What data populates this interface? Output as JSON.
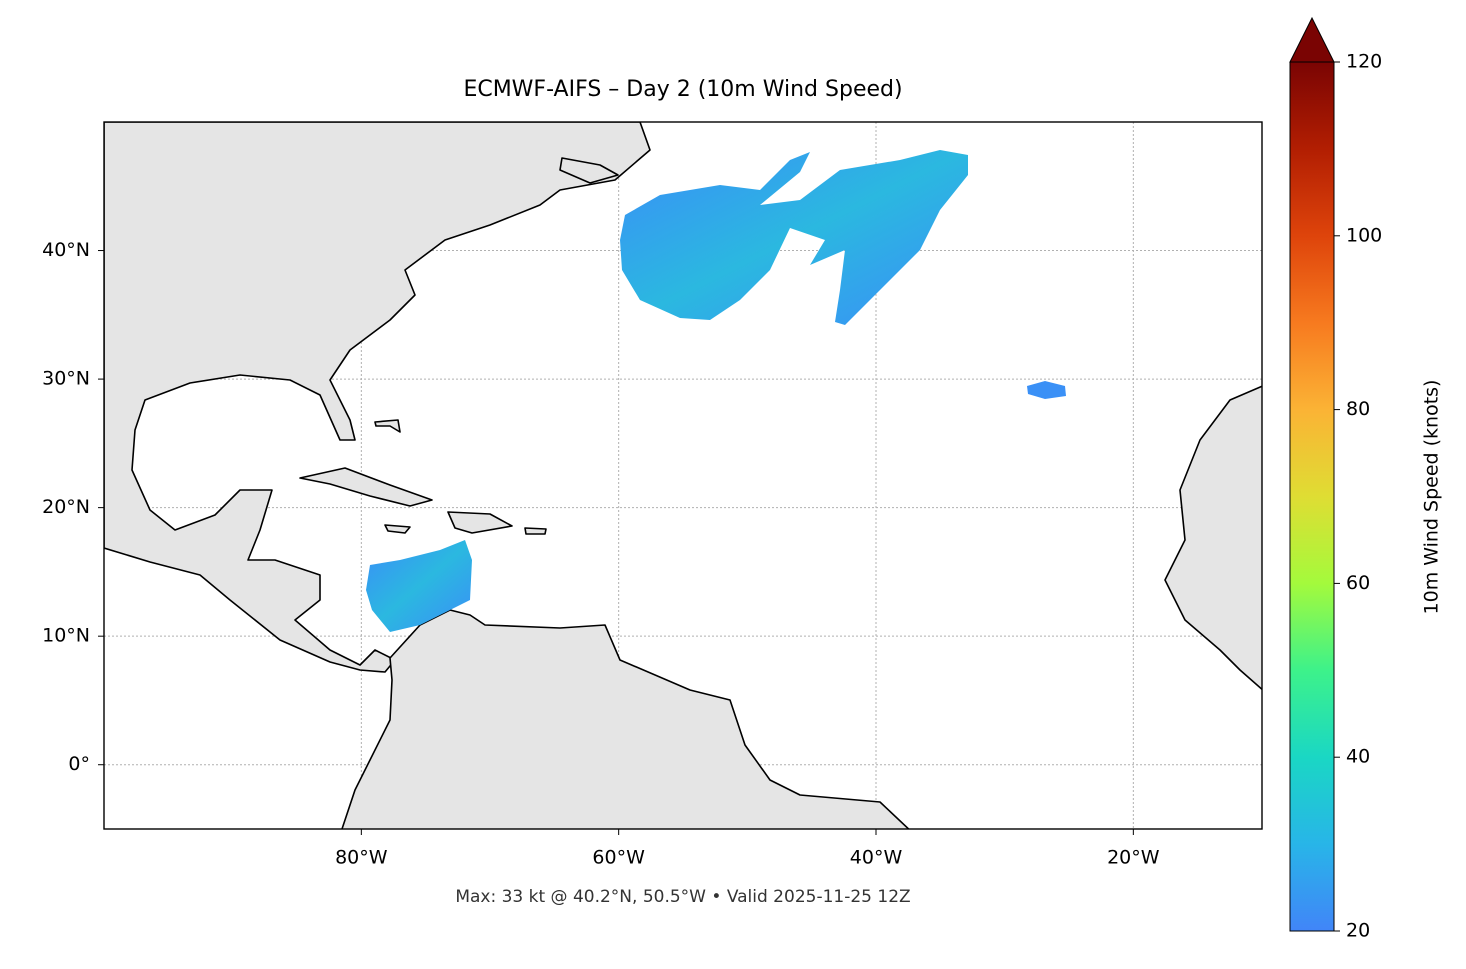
{
  "chart_data": {
    "type": "map",
    "title": "ECMWF-AIFS – Day 2 (10m Wind Speed)",
    "annotation": "Max: 33 kt @ 40.2°N, 50.5°W • Valid 2025-11-25 12Z",
    "xlim": [
      -100,
      -10
    ],
    "xticks": [
      {
        "value": -80,
        "label": "80°W"
      },
      {
        "value": -60,
        "label": "60°W"
      },
      {
        "value": -40,
        "label": "40°W"
      },
      {
        "value": -20,
        "label": "20°W"
      }
    ],
    "ylim": [
      -5,
      50
    ],
    "yticks": [
      {
        "value": 0,
        "label": "0°"
      },
      {
        "value": 10,
        "label": "10°N"
      },
      {
        "value": 20,
        "label": "20°N"
      },
      {
        "value": 30,
        "label": "30°N"
      },
      {
        "value": 40,
        "label": "40°N"
      }
    ],
    "grid": true,
    "colorbar": {
      "label": "10m Wind Speed (knots)",
      "lim": [
        20,
        120
      ],
      "ticks": [
        20,
        40,
        60,
        80,
        100,
        120
      ],
      "extend": "max"
    }
  }
}
